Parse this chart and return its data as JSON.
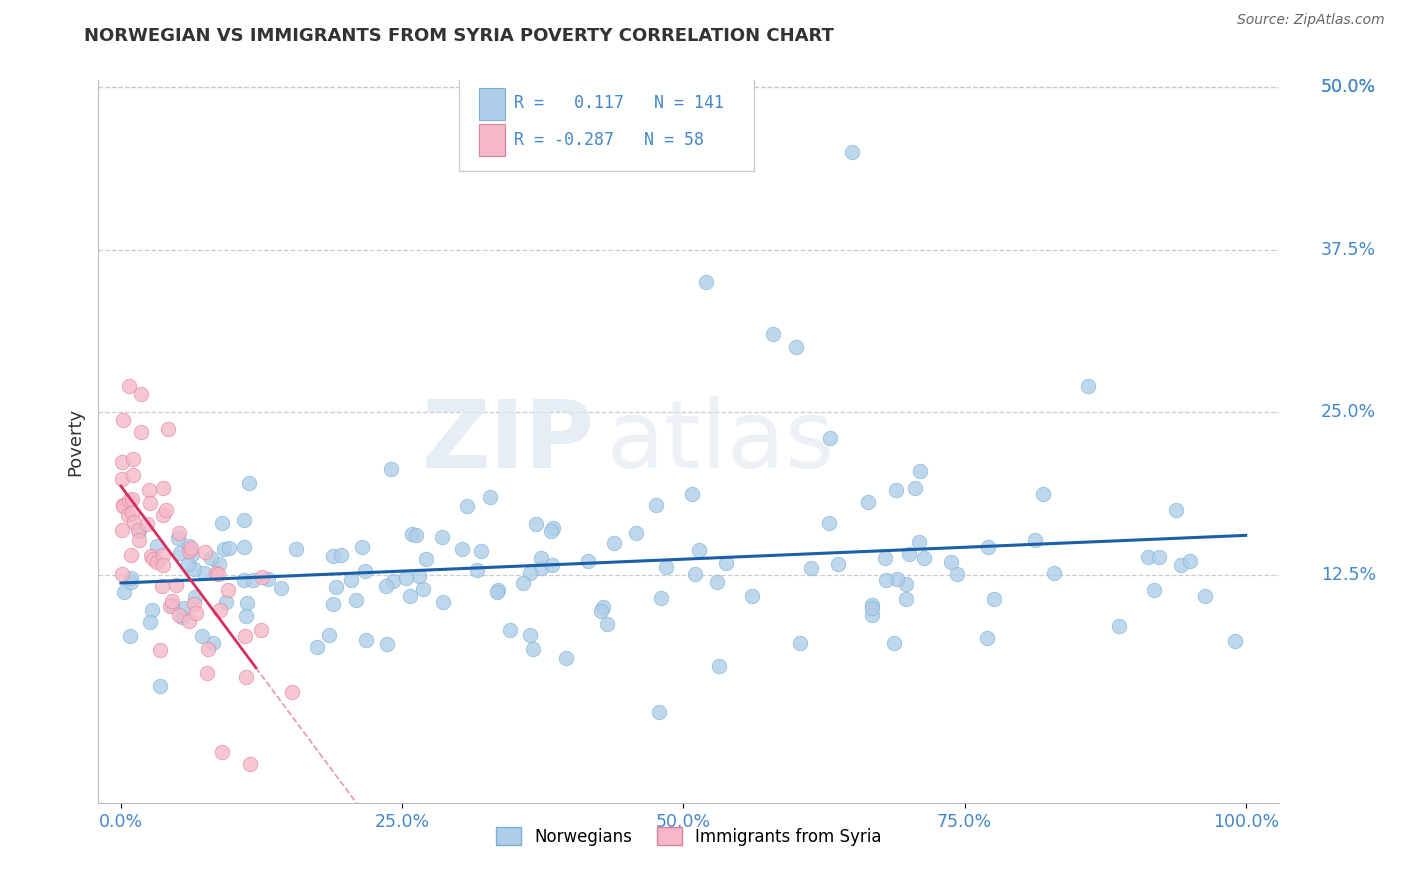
{
  "title": "NORWEGIAN VS IMMIGRANTS FROM SYRIA POVERTY CORRELATION CHART",
  "source": "Source: ZipAtlas.com",
  "ylabel": "Poverty",
  "xlim": [
    0,
    1
  ],
  "ylim": [
    0,
    0.5
  ],
  "xticks": [
    0.0,
    0.25,
    0.5,
    0.75,
    1.0
  ],
  "xtick_labels": [
    "0.0%",
    "25.0%",
    "50.0%",
    "75.0%",
    "100.0%"
  ],
  "yticks": [
    0.125,
    0.25,
    0.375,
    0.5
  ],
  "ytick_labels": [
    "12.5%",
    "25.0%",
    "37.5%",
    "50.0%"
  ],
  "grid_color": "#cccccc",
  "background_color": "#ffffff",
  "norwegian_color": "#aecde8",
  "syria_color": "#f4b8c8",
  "norwegian_edge": "#7ab0d4",
  "syria_edge": "#e08098",
  "trend_norwegian_color": "#1a5fa8",
  "trend_syria_color": "#d63060",
  "r_norwegian": 0.117,
  "n_norwegian": 141,
  "r_syria": -0.287,
  "n_syria": 58,
  "watermark": "ZIPatlas",
  "legend_label_1": "Norwegians",
  "legend_label_2": "Immigrants from Syria",
  "title_color": "#333333",
  "axis_label_color": "#4488cc",
  "tick_color": "#333333"
}
